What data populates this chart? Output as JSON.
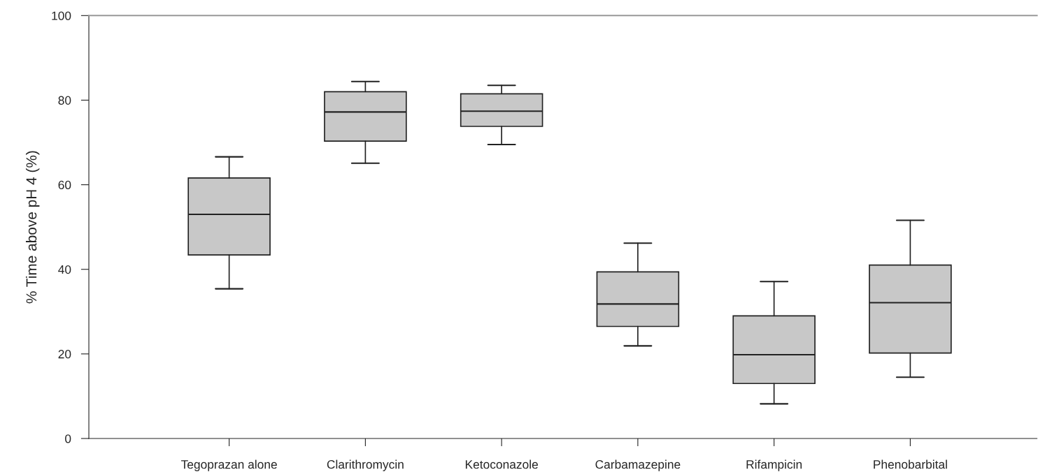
{
  "chart_data": {
    "type": "box",
    "ylabel": "% Time above pH 4 (%)",
    "categories": [
      "Tegoprazan alone",
      "Clarithromycin",
      "Ketoconazole",
      "Carbamazepine",
      "Rifampicin",
      "Phenobarbital"
    ],
    "boxes": [
      {
        "low": 35.4,
        "q1": 43.4,
        "median": 53.0,
        "q3": 61.6,
        "high": 66.6
      },
      {
        "low": 65.1,
        "q1": 70.3,
        "median": 77.2,
        "q3": 82.0,
        "high": 84.4
      },
      {
        "low": 69.5,
        "q1": 73.8,
        "median": 77.4,
        "q3": 81.5,
        "high": 83.5
      },
      {
        "low": 21.9,
        "q1": 26.5,
        "median": 31.8,
        "q3": 39.4,
        "high": 46.2
      },
      {
        "low": 8.2,
        "q1": 13.0,
        "median": 19.8,
        "q3": 29.0,
        "high": 37.1
      },
      {
        "low": 14.5,
        "q1": 20.2,
        "median": 32.1,
        "q3": 41.0,
        "high": 51.6
      }
    ],
    "color": "#c8c8c8",
    "ylim": [
      0,
      100
    ],
    "yticks": [
      0,
      20,
      40,
      60,
      80,
      100
    ],
    "grid": false
  }
}
